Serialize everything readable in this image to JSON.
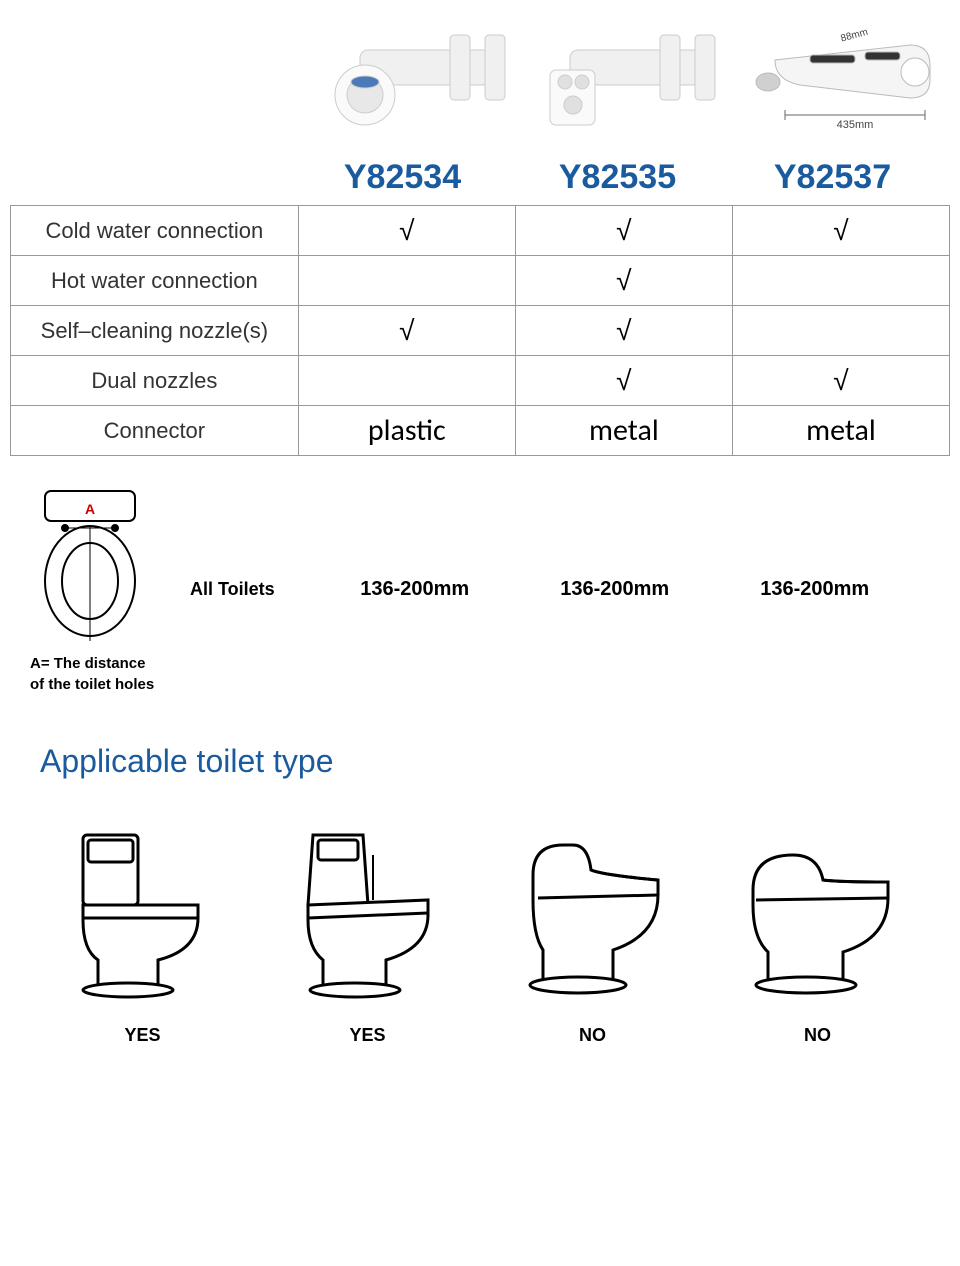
{
  "colors": {
    "model_header": "#1a5a9e",
    "applicable_title": "#1a5a9e",
    "border": "#999999",
    "text": "#000000",
    "label_text": "#333333",
    "dim_red": "#d00000"
  },
  "products": {
    "models": [
      "Y82534",
      "Y82535",
      "Y82537"
    ],
    "dimensions": {
      "width_label": "435mm",
      "depth_label": "88mm"
    }
  },
  "comparison": {
    "features": [
      {
        "label": "Cold water connection",
        "values": [
          "√",
          "√",
          "√"
        ]
      },
      {
        "label": "Hot water connection",
        "values": [
          "",
          "√",
          ""
        ]
      },
      {
        "label": "Self–cleaning nozzle(s)",
        "values": [
          "√",
          "√",
          ""
        ]
      },
      {
        "label": "Dual nozzles",
        "values": [
          "",
          "√",
          "√"
        ]
      },
      {
        "label": "Connector",
        "values": [
          "plastic",
          "metal",
          "metal"
        ],
        "is_text": true
      }
    ]
  },
  "toilet_holes": {
    "dim_letter": "A",
    "caption_line1": "A= The distance",
    "caption_line2": "of the toilet holes",
    "all_toilets_label": "All Toilets",
    "ranges": [
      "136-200mm",
      "136-200mm",
      "136-200mm"
    ]
  },
  "applicable": {
    "title": "Applicable toilet type",
    "types": [
      {
        "label": "YES",
        "shape": "two-piece-flat"
      },
      {
        "label": "YES",
        "shape": "two-piece-angled"
      },
      {
        "label": "NO",
        "shape": "one-piece-curved"
      },
      {
        "label": "NO",
        "shape": "one-piece-low"
      }
    ]
  }
}
